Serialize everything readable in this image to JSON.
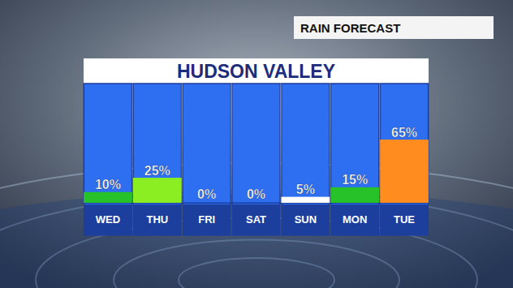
{
  "chart_data": {
    "type": "bar",
    "title": "HUDSON VALLEY",
    "subtitle": "RAIN FORECAST",
    "categories": [
      "WED",
      "THU",
      "FRI",
      "SAT",
      "SUN",
      "MON",
      "TUE"
    ],
    "values": [
      10,
      25,
      0,
      0,
      5,
      15,
      65
    ],
    "value_labels": [
      "10%",
      "25%",
      "0%",
      "0%",
      "5%",
      "15%",
      "65%"
    ],
    "colors": [
      "#27c22a",
      "#8aee22",
      "#ffffff",
      "#ffffff",
      "#ffffff",
      "#27c22a",
      "#ff8c1f"
    ],
    "ylim": [
      0,
      125
    ],
    "grid": false,
    "data_labels": true,
    "tick_labels": "x"
  }
}
